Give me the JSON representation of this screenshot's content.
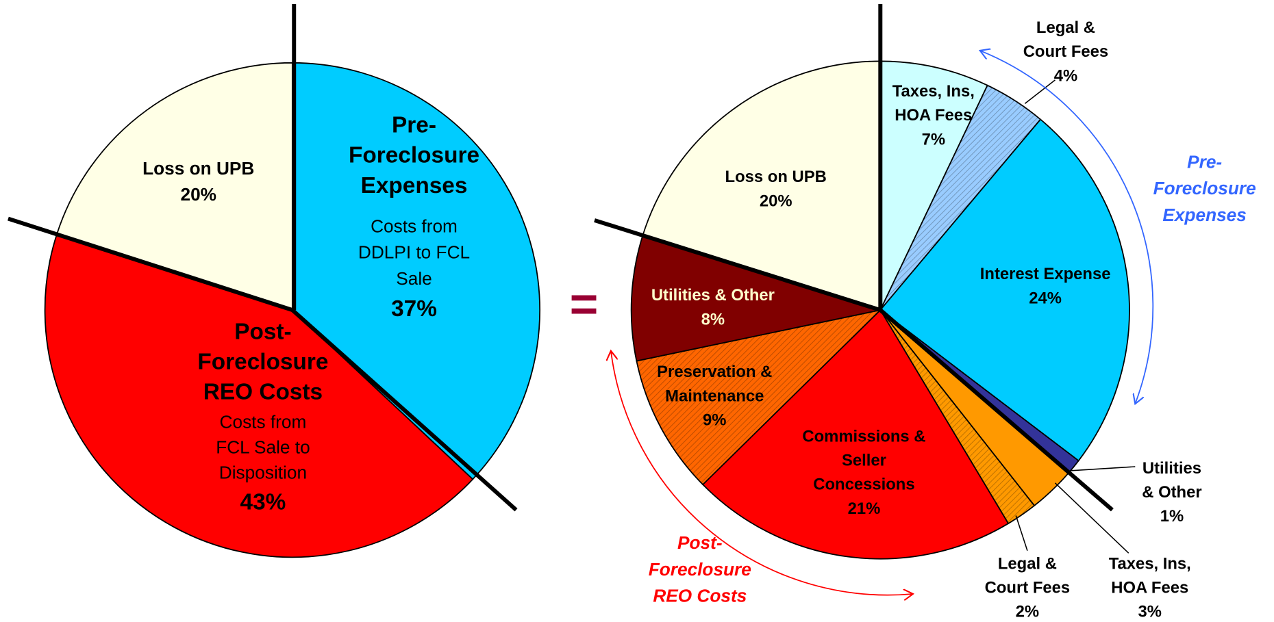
{
  "chart_data": [
    {
      "type": "pie",
      "labels": [
        [
          "Pre-",
          "Foreclosure",
          "Expenses"
        ],
        [
          "Post-",
          "Foreclosure",
          "REO Costs"
        ],
        [
          "Loss on UPB"
        ]
      ],
      "descriptions": [
        [
          "Costs from",
          "DDLPI to FCL",
          "Sale"
        ],
        [
          "Costs from",
          "FCL Sale to",
          "Disposition"
        ],
        null
      ],
      "values": [
        37,
        43,
        20
      ],
      "value_labels": [
        "37%",
        "43%",
        "20%"
      ],
      "colors": [
        "#00ccff",
        "#ff0000",
        "#ffffe6"
      ],
      "hatched": [
        false,
        false,
        false
      ]
    },
    {
      "type": "pie",
      "labels": [
        [
          "Taxes, Ins,",
          "HOA Fees"
        ],
        [
          "Legal &",
          "Court Fees"
        ],
        [
          "Interest Expense"
        ],
        [
          "Utilities",
          "& Other"
        ],
        [
          "Taxes, Ins,",
          "HOA Fees"
        ],
        [
          "Legal &",
          "Court Fees"
        ],
        [
          "Commissions &",
          "Seller",
          "Concessions"
        ],
        [
          "Preservation &",
          "Maintenance"
        ],
        [
          "Utilities & Other"
        ],
        [
          "Loss on UPB"
        ]
      ],
      "values": [
        7,
        4,
        24,
        1,
        3,
        2,
        21,
        9,
        8,
        20
      ],
      "value_labels": [
        "7%",
        "4%",
        "24%",
        "1%",
        "3%",
        "2%",
        "21%",
        "9%",
        "8%",
        "20%"
      ],
      "colors": [
        "#ccffff",
        "#99ccff",
        "#00ccff",
        "#333399",
        "#ff9900",
        "#ff9900",
        "#ff0000",
        "#ff6600",
        "#800000",
        "#ffffe6"
      ],
      "hatched": [
        false,
        true,
        false,
        false,
        false,
        true,
        false,
        true,
        false,
        false
      ]
    }
  ],
  "annotations": {
    "equals_sign": "=",
    "group_labels": [
      {
        "text": [
          "Pre-",
          "Foreclosure",
          "Expenses"
        ],
        "color": "#3366ff"
      },
      {
        "text": [
          "Post-",
          "Foreclosure",
          "REO Costs"
        ],
        "color": "#ff0000"
      }
    ]
  }
}
